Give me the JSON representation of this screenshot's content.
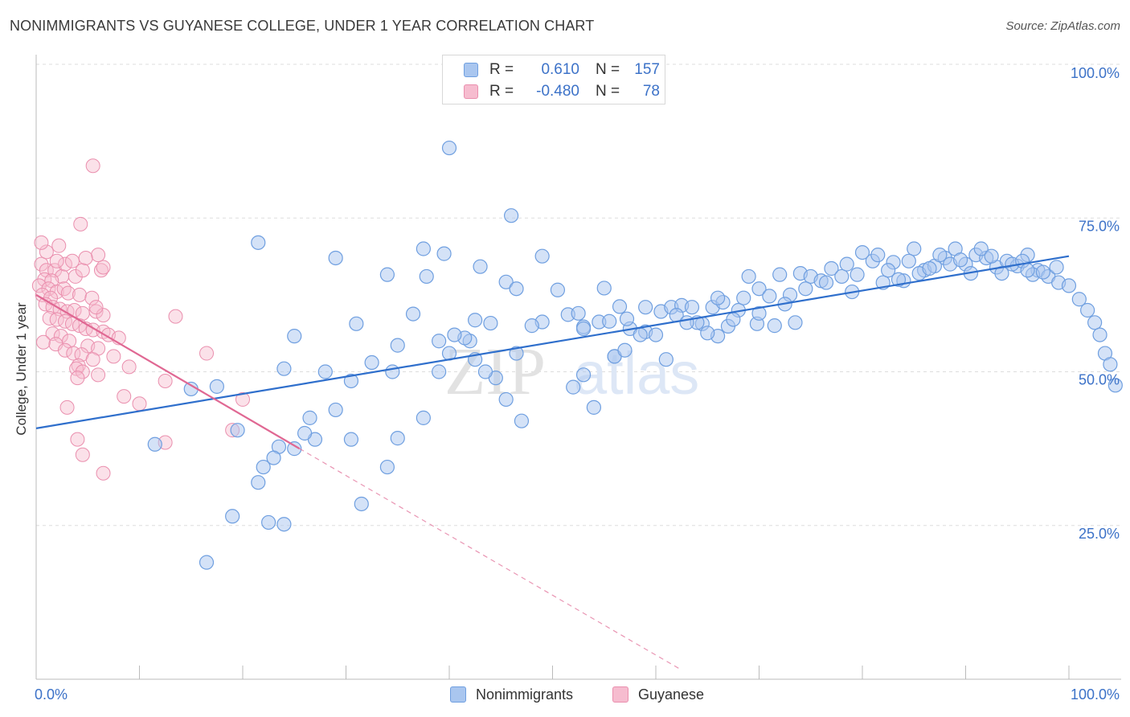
{
  "title": "NONIMMIGRANTS VS GUYANESE COLLEGE, UNDER 1 YEAR CORRELATION CHART",
  "source": "Source: ZipAtlas.com",
  "watermark": {
    "part1": "ZIP",
    "part2": "atlas"
  },
  "colors": {
    "blue": "#6f9fe0",
    "blue_fill": "#a9c6ef",
    "blue_line": "#2f6fcc",
    "pink": "#ea8fae",
    "pink_fill": "#f6bccf",
    "pink_line": "#e06893",
    "axis_text": "#3c72c8",
    "grid": "#dddddd"
  },
  "legend": {
    "rows": [
      {
        "r_label": "R =",
        "r_value": "0.610",
        "n_label": "N =",
        "n_value": "157"
      },
      {
        "r_label": "R =",
        "r_value": "-0.480",
        "n_label": "N =",
        "n_value": "78"
      }
    ]
  },
  "bottom_legend": {
    "series1": "Nonimmigrants",
    "series2": "Guyanese"
  },
  "chart_data": {
    "type": "scatter",
    "title": "NONIMMIGRANTS VS GUYANESE COLLEGE, UNDER 1 YEAR CORRELATION CHART",
    "xlabel": "",
    "ylabel": "College, Under 1 year",
    "xlim": [
      0,
      100
    ],
    "ylim": [
      0,
      100
    ],
    "x_tick_labels": {
      "left": "0.0%",
      "right": "100.0%"
    },
    "y_ticks": [
      {
        "value": 100,
        "label": "100.0%"
      },
      {
        "value": 75,
        "label": "75.0%"
      },
      {
        "value": 50,
        "label": "50.0%"
      },
      {
        "value": 25,
        "label": "25.0%"
      }
    ],
    "grid": true,
    "legend_position": "top-center",
    "series": [
      {
        "name": "Nonimmigrants",
        "r": 0.61,
        "n": 157,
        "trend": {
          "x1": 0,
          "y1": 40.8,
          "x2": 100,
          "y2": 68.8
        },
        "points": [
          [
            40.0,
            86.4
          ],
          [
            46.0,
            75.4
          ],
          [
            21.5,
            71.0
          ],
          [
            37.5,
            70.0
          ],
          [
            29.0,
            68.5
          ],
          [
            39.5,
            69.2
          ],
          [
            49.0,
            68.8
          ],
          [
            43.0,
            67.1
          ],
          [
            34.0,
            65.8
          ],
          [
            37.8,
            65.5
          ],
          [
            45.5,
            64.6
          ],
          [
            46.5,
            63.5
          ],
          [
            50.5,
            63.3
          ],
          [
            55.0,
            63.6
          ],
          [
            56.5,
            60.6
          ],
          [
            36.5,
            59.4
          ],
          [
            31.0,
            57.8
          ],
          [
            44.0,
            57.9
          ],
          [
            49.0,
            58.1
          ],
          [
            42.5,
            58.4
          ],
          [
            51.5,
            59.3
          ],
          [
            52.5,
            59.5
          ],
          [
            53.0,
            57.3
          ],
          [
            54.5,
            58.1
          ],
          [
            55.5,
            58.2
          ],
          [
            57.5,
            57.0
          ],
          [
            59.0,
            56.5
          ],
          [
            60.5,
            59.8
          ],
          [
            61.5,
            60.5
          ],
          [
            62.5,
            60.8
          ],
          [
            63.5,
            60.5
          ],
          [
            64.5,
            57.8
          ],
          [
            65.5,
            60.5
          ],
          [
            66.5,
            61.3
          ],
          [
            67.0,
            57.4
          ],
          [
            68.0,
            60.0
          ],
          [
            69.0,
            65.5
          ],
          [
            70.0,
            63.5
          ],
          [
            71.0,
            62.3
          ],
          [
            72.0,
            65.8
          ],
          [
            73.0,
            62.5
          ],
          [
            74.0,
            66.0
          ],
          [
            75.0,
            65.5
          ],
          [
            76.0,
            64.8
          ],
          [
            77.0,
            66.8
          ],
          [
            78.0,
            65.5
          ],
          [
            79.0,
            63.0
          ],
          [
            80.0,
            69.4
          ],
          [
            81.0,
            68.0
          ],
          [
            82.0,
            64.5
          ],
          [
            83.0,
            67.8
          ],
          [
            84.0,
            64.8
          ],
          [
            85.0,
            70.0
          ],
          [
            86.0,
            66.5
          ],
          [
            87.0,
            67.2
          ],
          [
            88.0,
            68.5
          ],
          [
            89.0,
            70.0
          ],
          [
            90.0,
            67.5
          ],
          [
            91.0,
            69.0
          ],
          [
            92.0,
            68.5
          ],
          [
            93.0,
            67.0
          ],
          [
            94.0,
            68.0
          ],
          [
            95.0,
            67.2
          ],
          [
            96.0,
            69.0
          ],
          [
            97.0,
            66.5
          ],
          [
            98.0,
            65.5
          ],
          [
            99.0,
            64.5
          ],
          [
            100.0,
            64.0
          ],
          [
            96.5,
            65.8
          ],
          [
            98.8,
            67.0
          ],
          [
            101.0,
            61.8
          ],
          [
            101.8,
            60.0
          ],
          [
            102.5,
            58.0
          ],
          [
            103.0,
            56.0
          ],
          [
            103.5,
            53.0
          ],
          [
            104.0,
            51.2
          ],
          [
            104.5,
            47.8
          ],
          [
            73.5,
            58.0
          ],
          [
            71.5,
            57.5
          ],
          [
            69.8,
            57.8
          ],
          [
            68.5,
            62.0
          ],
          [
            66.0,
            55.8
          ],
          [
            64.0,
            58.0
          ],
          [
            62.0,
            59.2
          ],
          [
            58.5,
            56.0
          ],
          [
            57.2,
            58.6
          ],
          [
            56.0,
            52.5
          ],
          [
            53.0,
            57.0
          ],
          [
            48.0,
            57.5
          ],
          [
            46.5,
            53.0
          ],
          [
            42.0,
            55.0
          ],
          [
            41.5,
            55.5
          ],
          [
            40.5,
            56.0
          ],
          [
            40.0,
            53.0
          ],
          [
            39.0,
            55.0
          ],
          [
            35.0,
            54.3
          ],
          [
            34.5,
            50.0
          ],
          [
            32.5,
            51.5
          ],
          [
            30.5,
            48.5
          ],
          [
            28.0,
            50.0
          ],
          [
            25.0,
            55.8
          ],
          [
            24.0,
            50.5
          ],
          [
            44.5,
            49.0
          ],
          [
            45.5,
            45.5
          ],
          [
            47.0,
            42.0
          ],
          [
            52.0,
            47.5
          ],
          [
            53.0,
            49.5
          ],
          [
            54.0,
            44.2
          ],
          [
            56.0,
            52.5
          ],
          [
            57.0,
            53.5
          ],
          [
            59.0,
            60.5
          ],
          [
            60.0,
            56.0
          ],
          [
            61.0,
            52.0
          ],
          [
            63.0,
            58.0
          ],
          [
            65.0,
            56.3
          ],
          [
            66.0,
            62.0
          ],
          [
            67.5,
            58.5
          ],
          [
            70.0,
            59.5
          ],
          [
            72.5,
            61.0
          ],
          [
            74.5,
            63.5
          ],
          [
            76.5,
            64.5
          ],
          [
            78.5,
            67.5
          ],
          [
            79.5,
            65.8
          ],
          [
            81.5,
            69.0
          ],
          [
            82.5,
            66.5
          ],
          [
            83.5,
            65.0
          ],
          [
            84.5,
            68.0
          ],
          [
            85.5,
            66.0
          ],
          [
            86.5,
            66.8
          ],
          [
            87.5,
            69.0
          ],
          [
            88.5,
            67.5
          ],
          [
            89.5,
            68.2
          ],
          [
            90.5,
            66.0
          ],
          [
            91.5,
            70.0
          ],
          [
            92.5,
            68.8
          ],
          [
            93.5,
            66.0
          ],
          [
            94.5,
            67.5
          ],
          [
            95.5,
            68.0
          ],
          [
            96.0,
            66.5
          ],
          [
            97.5,
            66.2
          ],
          [
            42.5,
            52.0
          ],
          [
            43.5,
            50.0
          ],
          [
            37.5,
            42.5
          ],
          [
            39.0,
            50.0
          ],
          [
            26.5,
            42.5
          ],
          [
            29.0,
            43.8
          ],
          [
            34.0,
            34.5
          ],
          [
            35.0,
            39.2
          ],
          [
            30.5,
            39.0
          ],
          [
            27.0,
            39.0
          ],
          [
            26.0,
            40.0
          ],
          [
            25.0,
            37.5
          ],
          [
            23.5,
            37.8
          ],
          [
            21.5,
            32.0
          ],
          [
            19.5,
            40.5
          ],
          [
            11.5,
            38.2
          ],
          [
            15.0,
            47.2
          ],
          [
            17.5,
            47.6
          ],
          [
            23.0,
            36.0
          ],
          [
            22.0,
            34.5
          ],
          [
            19.0,
            26.5
          ],
          [
            16.5,
            19.0
          ],
          [
            22.5,
            25.5
          ],
          [
            24.0,
            25.2
          ],
          [
            31.5,
            28.5
          ]
        ]
      },
      {
        "name": "Guyanese",
        "r": -0.48,
        "n": 78,
        "trend": {
          "x1": 0,
          "y1": 62.5,
          "x2": 25.5,
          "y2": 37.5
        },
        "trend_dashed_extension": {
          "x1": 25.5,
          "y1": 37.5,
          "x2": 62.5,
          "y2": 1.5
        },
        "points": [
          [
            5.5,
            83.5
          ],
          [
            4.3,
            74.0
          ],
          [
            2.2,
            70.5
          ],
          [
            0.5,
            67.5
          ],
          [
            1.0,
            66.5
          ],
          [
            1.8,
            66.5
          ],
          [
            2.5,
            65.5
          ],
          [
            3.8,
            65.5
          ],
          [
            4.5,
            66.5
          ],
          [
            6.3,
            66.5
          ],
          [
            2.8,
            67.5
          ],
          [
            0.8,
            65.0
          ],
          [
            1.5,
            64.8
          ],
          [
            0.3,
            64.0
          ],
          [
            1.2,
            63.5
          ],
          [
            2.0,
            63.0
          ],
          [
            2.7,
            63.5
          ],
          [
            3.1,
            62.8
          ],
          [
            4.2,
            62.5
          ],
          [
            5.4,
            62.0
          ],
          [
            0.6,
            62.5
          ],
          [
            1.4,
            62.0
          ],
          [
            0.9,
            61.0
          ],
          [
            1.6,
            60.5
          ],
          [
            2.3,
            60.2
          ],
          [
            3.0,
            59.8
          ],
          [
            3.7,
            60.0
          ],
          [
            4.5,
            59.5
          ],
          [
            5.8,
            59.8
          ],
          [
            6.5,
            59.2
          ],
          [
            1.3,
            58.7
          ],
          [
            2.0,
            58.5
          ],
          [
            2.8,
            58.2
          ],
          [
            3.5,
            57.8
          ],
          [
            4.2,
            57.5
          ],
          [
            4.8,
            57.0
          ],
          [
            5.5,
            56.8
          ],
          [
            6.5,
            56.5
          ],
          [
            7.0,
            56.0
          ],
          [
            1.6,
            56.2
          ],
          [
            2.4,
            55.8
          ],
          [
            3.2,
            55.0
          ],
          [
            0.7,
            54.8
          ],
          [
            1.9,
            54.5
          ],
          [
            5.0,
            54.2
          ],
          [
            6.0,
            53.8
          ],
          [
            2.8,
            53.5
          ],
          [
            3.6,
            53.0
          ],
          [
            4.4,
            52.8
          ],
          [
            8.0,
            55.5
          ],
          [
            7.5,
            52.5
          ],
          [
            9.0,
            50.8
          ],
          [
            5.5,
            52.0
          ],
          [
            4.1,
            51.0
          ],
          [
            3.9,
            50.5
          ],
          [
            4.5,
            50.0
          ],
          [
            4.0,
            49.0
          ],
          [
            6.0,
            49.5
          ],
          [
            8.5,
            46.0
          ],
          [
            10.0,
            44.8
          ],
          [
            3.0,
            44.2
          ],
          [
            12.5,
            48.5
          ],
          [
            13.5,
            59.0
          ],
          [
            16.5,
            53.0
          ],
          [
            20.0,
            45.5
          ],
          [
            19.0,
            40.5
          ],
          [
            12.5,
            38.5
          ],
          [
            6.5,
            33.5
          ],
          [
            4.5,
            36.5
          ],
          [
            4.0,
            39.0
          ],
          [
            5.8,
            60.5
          ],
          [
            6.5,
            67.0
          ],
          [
            3.5,
            68.0
          ],
          [
            2.0,
            68.0
          ],
          [
            1.0,
            69.5
          ],
          [
            0.5,
            71.0
          ],
          [
            6.0,
            69.0
          ],
          [
            4.8,
            68.5
          ]
        ]
      }
    ]
  }
}
